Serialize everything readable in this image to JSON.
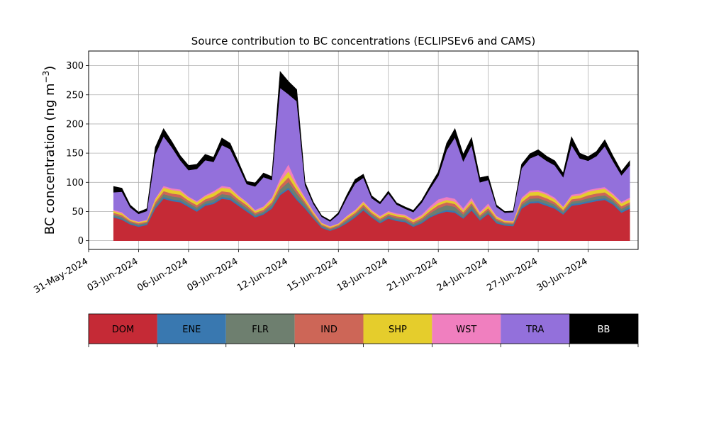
{
  "chart_data": {
    "type": "area",
    "stacked": true,
    "title": "Source contribution to BC concentrations (ECLIPSEv6 and CAMS)",
    "ylabel": "BC concentration (ng m",
    "ylabel_sup": "−3",
    "ylabel_close": ")",
    "ylim": [
      -15,
      325
    ],
    "xlim": [
      "2024-05-31",
      "2024-07-03"
    ],
    "yticks": [
      0,
      50,
      100,
      150,
      200,
      250,
      300
    ],
    "xticks": [
      "31-May-2024",
      "03-Jun-2024",
      "06-Jun-2024",
      "09-Jun-2024",
      "12-Jun-2024",
      "15-Jun-2024",
      "18-Jun-2024",
      "21-Jun-2024",
      "24-Jun-2024",
      "27-Jun-2024",
      "30-Jun-2024"
    ],
    "grid": true,
    "legend_position": "below",
    "x": [
      "2024-06-01 12:00",
      "2024-06-02 00:00",
      "2024-06-02 12:00",
      "2024-06-03 00:00",
      "2024-06-03 12:00",
      "2024-06-04 00:00",
      "2024-06-04 12:00",
      "2024-06-05 00:00",
      "2024-06-05 12:00",
      "2024-06-06 00:00",
      "2024-06-06 12:00",
      "2024-06-07 00:00",
      "2024-06-07 12:00",
      "2024-06-08 00:00",
      "2024-06-08 12:00",
      "2024-06-09 00:00",
      "2024-06-09 12:00",
      "2024-06-10 00:00",
      "2024-06-10 12:00",
      "2024-06-11 00:00",
      "2024-06-11 12:00",
      "2024-06-12 00:00",
      "2024-06-12 12:00",
      "2024-06-13 00:00",
      "2024-06-13 12:00",
      "2024-06-14 00:00",
      "2024-06-14 12:00",
      "2024-06-15 00:00",
      "2024-06-15 12:00",
      "2024-06-16 00:00",
      "2024-06-16 12:00",
      "2024-06-17 00:00",
      "2024-06-17 12:00",
      "2024-06-18 00:00",
      "2024-06-18 12:00",
      "2024-06-19 00:00",
      "2024-06-19 12:00",
      "2024-06-20 00:00",
      "2024-06-20 12:00",
      "2024-06-21 00:00",
      "2024-06-21 12:00",
      "2024-06-22 00:00",
      "2024-06-22 12:00",
      "2024-06-23 00:00",
      "2024-06-23 12:00",
      "2024-06-24 00:00",
      "2024-06-24 12:00",
      "2024-06-25 00:00",
      "2024-06-25 12:00",
      "2024-06-26 00:00",
      "2024-06-26 12:00",
      "2024-06-27 00:00",
      "2024-06-27 12:00",
      "2024-06-28 00:00",
      "2024-06-28 12:00",
      "2024-06-29 00:00",
      "2024-06-29 12:00",
      "2024-06-30 00:00",
      "2024-06-30 12:00",
      "2024-07-01 00:00",
      "2024-07-01 12:00",
      "2024-07-02 00:00",
      "2024-07-02 12:00"
    ],
    "series": [
      {
        "name": "DOM",
        "color": "#c52a36",
        "values": [
          40,
          36,
          28,
          24,
          27,
          55,
          72,
          68,
          66,
          58,
          50,
          60,
          63,
          72,
          70,
          60,
          50,
          40,
          45,
          55,
          78,
          88,
          70,
          55,
          38,
          22,
          17,
          22,
          30,
          40,
          52,
          40,
          30,
          38,
          34,
          32,
          24,
          30,
          40,
          46,
          50,
          48,
          38,
          52,
          35,
          46,
          30,
          26,
          25,
          55,
          64,
          65,
          60,
          55,
          45,
          60,
          62,
          65,
          68,
          70,
          62,
          48,
          55
        ]
      },
      {
        "name": "ENE",
        "color": "#3978b0",
        "values": [
          2,
          2,
          2,
          2,
          2,
          3,
          3,
          3,
          3,
          3,
          3,
          3,
          3,
          3,
          3,
          3,
          3,
          2,
          2,
          3,
          3,
          3,
          3,
          3,
          2,
          2,
          1,
          1,
          2,
          2,
          2,
          2,
          2,
          2,
          2,
          2,
          2,
          2,
          2,
          2,
          3,
          3,
          2,
          3,
          2,
          2,
          2,
          2,
          2,
          3,
          3,
          3,
          3,
          3,
          2,
          3,
          3,
          3,
          3,
          3,
          3,
          3,
          3
        ]
      },
      {
        "name": "FLR",
        "color": "#6e7f6f",
        "values": [
          3,
          3,
          2,
          2,
          2,
          4,
          5,
          5,
          5,
          4,
          4,
          4,
          5,
          5,
          5,
          4,
          4,
          3,
          3,
          4,
          7,
          10,
          8,
          5,
          3,
          2,
          2,
          2,
          3,
          3,
          4,
          3,
          3,
          3,
          3,
          3,
          3,
          4,
          5,
          8,
          8,
          7,
          5,
          6,
          4,
          4,
          3,
          2,
          2,
          4,
          5,
          5,
          5,
          4,
          3,
          4,
          4,
          5,
          5,
          5,
          4,
          4,
          4
        ]
      },
      {
        "name": "IND",
        "color": "#cd6657",
        "values": [
          3,
          3,
          2,
          2,
          2,
          4,
          5,
          5,
          5,
          4,
          4,
          4,
          5,
          5,
          5,
          4,
          4,
          3,
          3,
          4,
          6,
          8,
          6,
          4,
          3,
          2,
          2,
          2,
          3,
          3,
          4,
          3,
          3,
          3,
          3,
          3,
          3,
          3,
          4,
          5,
          5,
          5,
          4,
          4,
          3,
          4,
          3,
          2,
          2,
          4,
          5,
          5,
          5,
          4,
          3,
          4,
          4,
          5,
          5,
          5,
          4,
          4,
          4
        ]
      },
      {
        "name": "SHP",
        "color": "#e5cd2c",
        "values": [
          3,
          3,
          2,
          2,
          2,
          5,
          6,
          6,
          6,
          5,
          5,
          5,
          6,
          6,
          6,
          5,
          4,
          3,
          4,
          5,
          7,
          10,
          7,
          5,
          3,
          2,
          2,
          2,
          3,
          3,
          4,
          3,
          3,
          3,
          3,
          3,
          3,
          3,
          4,
          4,
          4,
          4,
          3,
          4,
          3,
          4,
          3,
          2,
          2,
          5,
          6,
          6,
          6,
          5,
          4,
          5,
          5,
          6,
          6,
          6,
          5,
          5,
          5
        ]
      },
      {
        "name": "WST",
        "color": "#f07fbf",
        "values": [
          2,
          2,
          1,
          1,
          1,
          2,
          3,
          3,
          3,
          2,
          2,
          2,
          3,
          3,
          3,
          2,
          2,
          2,
          2,
          3,
          6,
          12,
          5,
          3,
          2,
          1,
          1,
          1,
          2,
          2,
          2,
          2,
          2,
          2,
          2,
          2,
          2,
          3,
          4,
          6,
          5,
          5,
          4,
          5,
          3,
          4,
          2,
          1,
          1,
          3,
          3,
          3,
          3,
          3,
          2,
          3,
          3,
          3,
          3,
          3,
          3,
          3,
          3
        ]
      },
      {
        "name": "TRA",
        "color": "#9370db",
        "values": [
          30,
          35,
          20,
          13,
          15,
          75,
          85,
          70,
          50,
          45,
          55,
          60,
          50,
          70,
          65,
          50,
          30,
          40,
          50,
          30,
          155,
          120,
          140,
          20,
          12,
          10,
          8,
          15,
          30,
          45,
          40,
          20,
          20,
          30,
          15,
          10,
          12,
          20,
          30,
          40,
          80,
          105,
          80,
          90,
          50,
          40,
          15,
          13,
          15,
          50,
          55,
          60,
          55,
          55,
          50,
          85,
          60,
          50,
          55,
          70,
          55,
          45,
          55
        ]
      },
      {
        "name": "BB",
        "color": "#000000",
        "values": [
          10,
          6,
          4,
          3,
          4,
          12,
          13,
          10,
          8,
          8,
          8,
          10,
          8,
          12,
          10,
          7,
          5,
          6,
          7,
          6,
          28,
          22,
          20,
          5,
          3,
          2,
          2,
          3,
          5,
          7,
          6,
          4,
          3,
          4,
          3,
          3,
          3,
          4,
          5,
          7,
          12,
          15,
          12,
          13,
          8,
          7,
          3,
          2,
          2,
          7,
          8,
          9,
          8,
          8,
          7,
          14,
          9,
          7,
          8,
          11,
          9,
          7,
          8
        ]
      }
    ]
  }
}
